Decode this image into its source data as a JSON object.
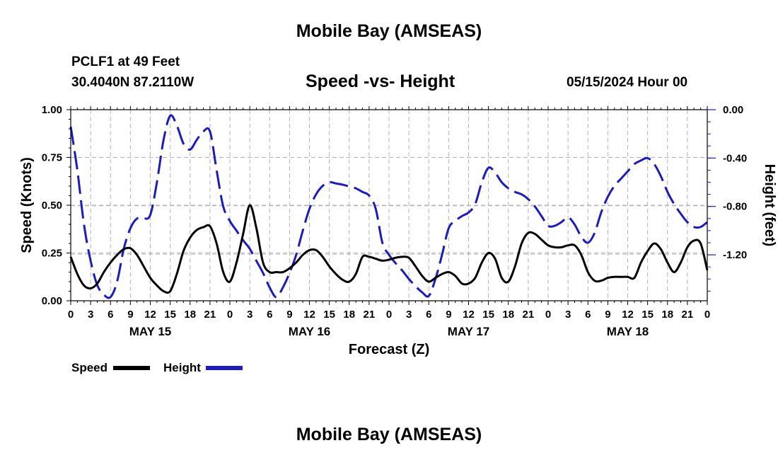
{
  "header": {
    "title": "Mobile Bay (AMSEAS)",
    "station": "PCLF1 at 49 Feet",
    "coords": "30.4040N  87.2110W",
    "subtitle": "Speed -vs- Height",
    "datetime": "05/15/2024 Hour 00",
    "footer_title": "Mobile Bay (AMSEAS)"
  },
  "chart_data": {
    "type": "line",
    "title": "Speed -vs- Height",
    "xlabel": "Forecast (Z)",
    "ylabel": "Speed (Knots)",
    "y2label": "Height (feet)",
    "xlim": [
      0,
      96
    ],
    "ylim": [
      0,
      1
    ],
    "y2lim": [
      -1.58,
      0.0
    ],
    "x_tick_step": 3,
    "x_tick_labels": [
      "0",
      "3",
      "6",
      "9",
      "12",
      "15",
      "18",
      "21",
      "0",
      "3",
      "6",
      "9",
      "12",
      "15",
      "18",
      "21",
      "0",
      "3",
      "6",
      "9",
      "12",
      "15",
      "18",
      "21",
      "0",
      "3",
      "6",
      "9",
      "12",
      "15",
      "18",
      "21",
      "0"
    ],
    "y_ticks": [
      "0.00",
      "0.25",
      "0.50",
      "0.75",
      "1.00"
    ],
    "y2_ticks": [
      "0.00",
      "-0.40",
      "-0.80",
      "-1.20"
    ],
    "day_labels": [
      {
        "x": 12,
        "label": "MAY 15"
      },
      {
        "x": 36,
        "label": "MAY 16"
      },
      {
        "x": 60,
        "label": "MAY 17"
      },
      {
        "x": 84,
        "label": "MAY 18"
      }
    ],
    "colors": {
      "speed": "#000000",
      "height": "#1a1acc",
      "grid": "#b4b4b4"
    },
    "series": [
      {
        "name": "Speed",
        "axis": "left",
        "style": "solid",
        "points": [
          [
            0,
            0.23
          ],
          [
            1,
            0.14
          ],
          [
            2,
            0.08
          ],
          [
            3,
            0.065
          ],
          [
            4,
            0.09
          ],
          [
            5,
            0.15
          ],
          [
            6,
            0.2
          ],
          [
            7,
            0.24
          ],
          [
            8,
            0.27
          ],
          [
            9,
            0.275
          ],
          [
            10,
            0.24
          ],
          [
            11,
            0.18
          ],
          [
            12,
            0.12
          ],
          [
            13,
            0.08
          ],
          [
            14,
            0.05
          ],
          [
            15,
            0.05
          ],
          [
            16,
            0.14
          ],
          [
            17,
            0.26
          ],
          [
            18,
            0.33
          ],
          [
            19,
            0.37
          ],
          [
            20,
            0.385
          ],
          [
            21,
            0.39
          ],
          [
            22,
            0.3
          ],
          [
            23,
            0.15
          ],
          [
            24,
            0.1
          ],
          [
            25,
            0.2
          ],
          [
            26,
            0.35
          ],
          [
            27,
            0.5
          ],
          [
            28,
            0.38
          ],
          [
            29,
            0.2
          ],
          [
            30,
            0.15
          ],
          [
            31,
            0.15
          ],
          [
            32,
            0.15
          ],
          [
            33,
            0.17
          ],
          [
            34,
            0.2
          ],
          [
            35,
            0.24
          ],
          [
            36,
            0.265
          ],
          [
            37,
            0.265
          ],
          [
            38,
            0.23
          ],
          [
            39,
            0.18
          ],
          [
            40,
            0.14
          ],
          [
            41,
            0.11
          ],
          [
            42,
            0.1
          ],
          [
            43,
            0.14
          ],
          [
            44,
            0.23
          ],
          [
            45,
            0.23
          ],
          [
            46,
            0.22
          ],
          [
            47,
            0.21
          ],
          [
            48,
            0.215
          ],
          [
            49,
            0.225
          ],
          [
            50,
            0.23
          ],
          [
            51,
            0.225
          ],
          [
            52,
            0.18
          ],
          [
            53,
            0.13
          ],
          [
            54,
            0.1
          ],
          [
            55,
            0.12
          ],
          [
            56,
            0.14
          ],
          [
            57,
            0.15
          ],
          [
            58,
            0.13
          ],
          [
            59,
            0.09
          ],
          [
            60,
            0.09
          ],
          [
            61,
            0.12
          ],
          [
            62,
            0.2
          ],
          [
            63,
            0.25
          ],
          [
            64,
            0.22
          ],
          [
            65,
            0.12
          ],
          [
            66,
            0.1
          ],
          [
            67,
            0.18
          ],
          [
            68,
            0.3
          ],
          [
            69,
            0.355
          ],
          [
            70,
            0.35
          ],
          [
            71,
            0.32
          ],
          [
            72,
            0.29
          ],
          [
            73,
            0.28
          ],
          [
            74,
            0.28
          ],
          [
            75,
            0.29
          ],
          [
            76,
            0.29
          ],
          [
            77,
            0.24
          ],
          [
            78,
            0.15
          ],
          [
            79,
            0.105
          ],
          [
            80,
            0.105
          ],
          [
            81,
            0.12
          ],
          [
            82,
            0.125
          ],
          [
            83,
            0.125
          ],
          [
            84,
            0.125
          ],
          [
            85,
            0.12
          ],
          [
            86,
            0.2
          ],
          [
            87,
            0.26
          ],
          [
            88,
            0.3
          ],
          [
            89,
            0.27
          ],
          [
            90,
            0.2
          ],
          [
            91,
            0.15
          ],
          [
            92,
            0.2
          ],
          [
            93,
            0.28
          ],
          [
            94,
            0.315
          ],
          [
            95,
            0.3
          ],
          [
            96,
            0.16
          ]
        ]
      },
      {
        "name": "Height",
        "axis": "right",
        "style": "dashed",
        "points": [
          [
            0,
            -0.14
          ],
          [
            1,
            -0.5
          ],
          [
            2,
            -0.95
          ],
          [
            3,
            -1.25
          ],
          [
            4,
            -1.45
          ],
          [
            5,
            -1.53
          ],
          [
            6,
            -1.55
          ],
          [
            7,
            -1.42
          ],
          [
            8,
            -1.15
          ],
          [
            9,
            -0.98
          ],
          [
            10,
            -0.9
          ],
          [
            11,
            -0.9
          ],
          [
            12,
            -0.87
          ],
          [
            13,
            -0.6
          ],
          [
            14,
            -0.25
          ],
          [
            15,
            -0.05
          ],
          [
            16,
            -0.13
          ],
          [
            17,
            -0.28
          ],
          [
            18,
            -0.33
          ],
          [
            19,
            -0.25
          ],
          [
            20,
            -0.18
          ],
          [
            21,
            -0.18
          ],
          [
            22,
            -0.5
          ],
          [
            23,
            -0.8
          ],
          [
            24,
            -0.92
          ],
          [
            25,
            -1.0
          ],
          [
            26,
            -1.08
          ],
          [
            27,
            -1.15
          ],
          [
            28,
            -1.25
          ],
          [
            29,
            -1.35
          ],
          [
            30,
            -1.47
          ],
          [
            31,
            -1.55
          ],
          [
            32,
            -1.47
          ],
          [
            33,
            -1.35
          ],
          [
            34,
            -1.2
          ],
          [
            35,
            -1.0
          ],
          [
            36,
            -0.82
          ],
          [
            37,
            -0.7
          ],
          [
            38,
            -0.63
          ],
          [
            39,
            -0.6
          ],
          [
            40,
            -0.61
          ],
          [
            41,
            -0.62
          ],
          [
            42,
            -0.635
          ],
          [
            43,
            -0.65
          ],
          [
            44,
            -0.68
          ],
          [
            45,
            -0.71
          ],
          [
            46,
            -0.82
          ],
          [
            47,
            -1.1
          ],
          [
            48,
            -1.2
          ],
          [
            49,
            -1.27
          ],
          [
            50,
            -1.33
          ],
          [
            51,
            -1.4
          ],
          [
            52,
            -1.46
          ],
          [
            53,
            -1.51
          ],
          [
            54,
            -1.54
          ],
          [
            55,
            -1.4
          ],
          [
            56,
            -1.2
          ],
          [
            57,
            -0.98
          ],
          [
            58,
            -0.92
          ],
          [
            59,
            -0.88
          ],
          [
            60,
            -0.85
          ],
          [
            61,
            -0.78
          ],
          [
            62,
            -0.6
          ],
          [
            63,
            -0.48
          ],
          [
            64,
            -0.52
          ],
          [
            65,
            -0.6
          ],
          [
            66,
            -0.65
          ],
          [
            67,
            -0.68
          ],
          [
            68,
            -0.7
          ],
          [
            69,
            -0.74
          ],
          [
            70,
            -0.8
          ],
          [
            71,
            -0.88
          ],
          [
            72,
            -0.96
          ],
          [
            73,
            -0.96
          ],
          [
            74,
            -0.93
          ],
          [
            75,
            -0.89
          ],
          [
            76,
            -0.95
          ],
          [
            77,
            -1.05
          ],
          [
            78,
            -1.1
          ],
          [
            79,
            -1.02
          ],
          [
            80,
            -0.85
          ],
          [
            81,
            -0.72
          ],
          [
            82,
            -0.63
          ],
          [
            83,
            -0.57
          ],
          [
            84,
            -0.51
          ],
          [
            85,
            -0.45
          ],
          [
            86,
            -0.42
          ],
          [
            87,
            -0.4
          ],
          [
            88,
            -0.45
          ],
          [
            89,
            -0.55
          ],
          [
            90,
            -0.68
          ],
          [
            91,
            -0.78
          ],
          [
            92,
            -0.86
          ],
          [
            93,
            -0.93
          ],
          [
            94,
            -0.97
          ],
          [
            95,
            -0.97
          ],
          [
            96,
            -0.93
          ]
        ]
      }
    ],
    "legend": [
      {
        "label": "Speed",
        "series": "Speed"
      },
      {
        "label": "Height",
        "series": "Height"
      }
    ]
  }
}
